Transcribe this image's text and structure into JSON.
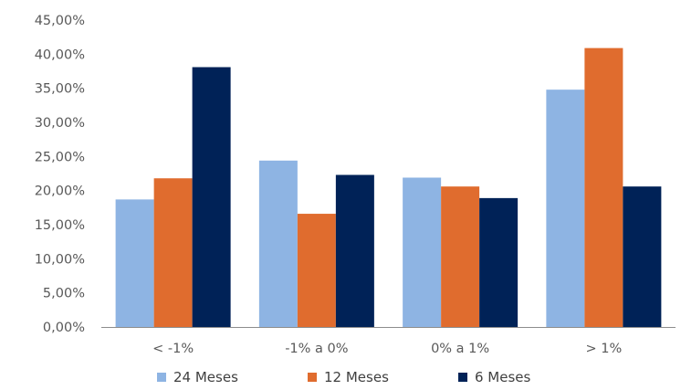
{
  "chart_data": {
    "type": "bar",
    "title": "",
    "xlabel": "",
    "ylabel": "",
    "categories": [
      "< -1%",
      "-1% a 0%",
      "0% a 1%",
      "> 1%"
    ],
    "series": [
      {
        "name": "24 Meses",
        "color": "#8EB4E3",
        "values": [
          18.7,
          24.4,
          21.9,
          34.8
        ]
      },
      {
        "name": "12 Meses",
        "color": "#E06C2E",
        "values": [
          21.8,
          16.6,
          20.6,
          40.9
        ]
      },
      {
        "name": "6 Meses",
        "color": "#002257",
        "values": [
          38.1,
          22.3,
          18.9,
          20.6
        ]
      }
    ],
    "ylim": [
      0,
      45
    ],
    "yticks": [
      {
        "value": 0,
        "label": "0,00%"
      },
      {
        "value": 5,
        "label": "5,00%"
      },
      {
        "value": 10,
        "label": "10,00%"
      },
      {
        "value": 15,
        "label": "15,00%"
      },
      {
        "value": 20,
        "label": "20,00%"
      },
      {
        "value": 25,
        "label": "25,00%"
      },
      {
        "value": 30,
        "label": "30,00%"
      },
      {
        "value": 35,
        "label": "35,00%"
      },
      {
        "value": 40,
        "label": "40,00%"
      },
      {
        "value": 45,
        "label": "45,00%"
      }
    ],
    "grid": false,
    "legend": "bottom"
  }
}
